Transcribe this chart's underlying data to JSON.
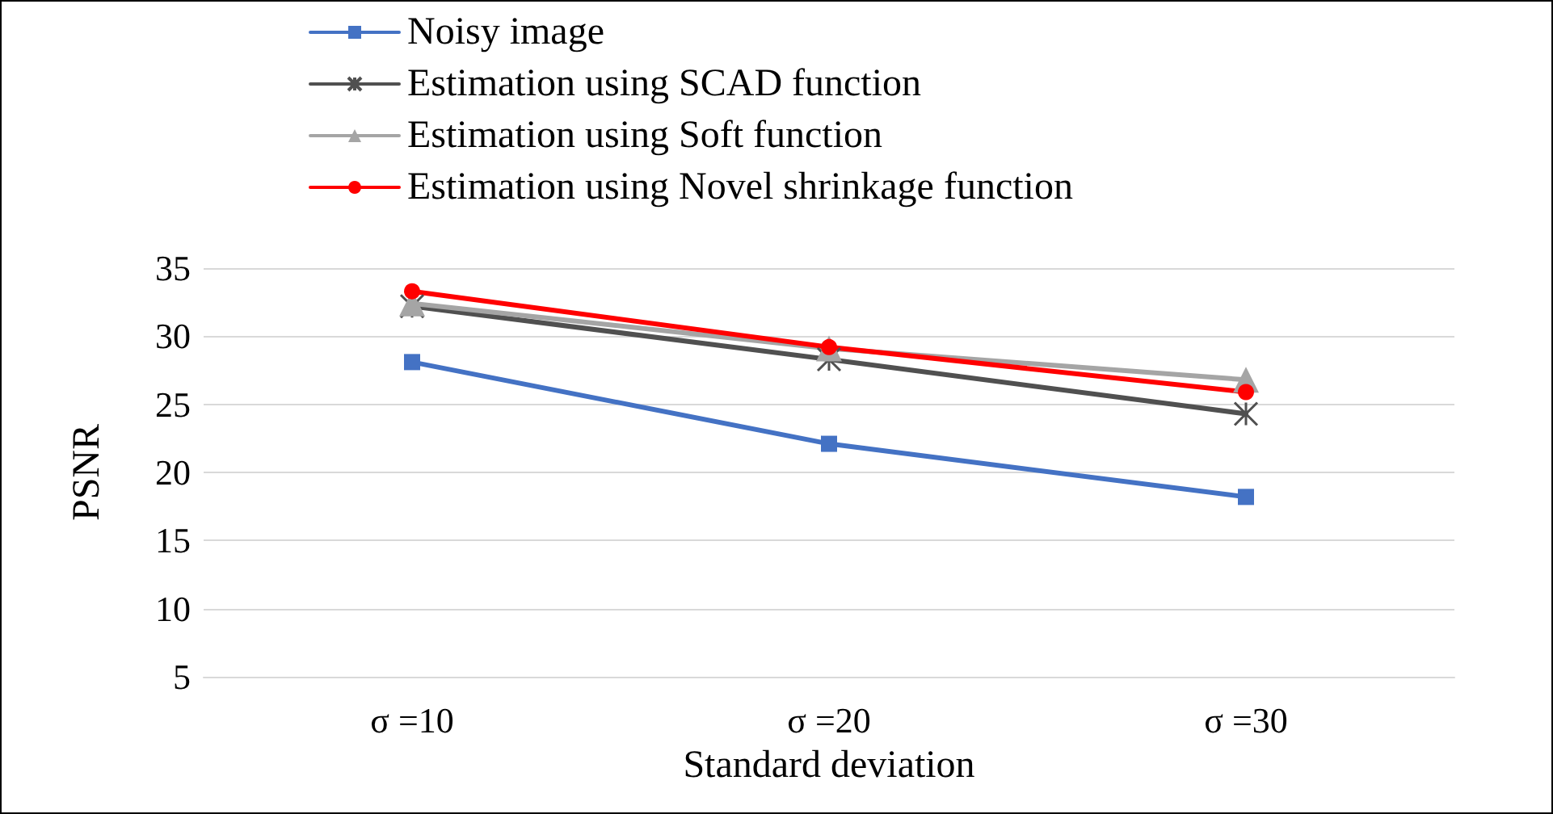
{
  "chart_data": {
    "type": "line",
    "xlabel": "Standard deviation",
    "ylabel": "PSNR",
    "categories": [
      "σ =10",
      "σ =20",
      "σ =30"
    ],
    "series": [
      {
        "name": "Noisy image",
        "color": "#4472c4",
        "marker": "square",
        "values": [
          28.1,
          22.1,
          18.2
        ]
      },
      {
        "name": "Estimation using SCAD function",
        "color": "#505050",
        "marker": "cross",
        "values": [
          32.2,
          28.3,
          24.3
        ]
      },
      {
        "name": "Estimation using Soft function",
        "color": "#a5a5a5",
        "marker": "triangle",
        "values": [
          32.4,
          29.1,
          26.8
        ]
      },
      {
        "name": "Estimation using Novel shrinkage function",
        "color": "#ff0000",
        "marker": "circle",
        "values": [
          33.3,
          29.2,
          25.9
        ]
      }
    ],
    "ylim": [
      5,
      35
    ],
    "yticks": [
      5,
      10,
      15,
      20,
      25,
      30,
      35
    ],
    "grid": "y",
    "legend": "top"
  }
}
